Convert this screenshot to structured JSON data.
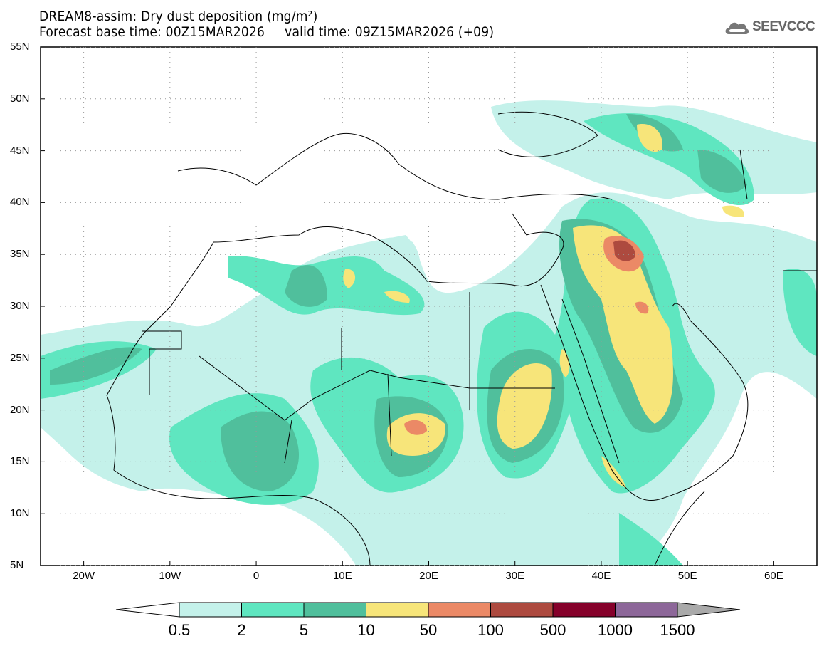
{
  "header": {
    "title": "DREAM8-assim: Dry dust deposition (mg/m²)",
    "subtitle": "Forecast base time: 00Z15MAR2026     valid time: 09Z15MAR2026 (+09)",
    "logo_text": "SEEVCCC",
    "logo_icon": "cloud-icon"
  },
  "map": {
    "lat_labels": [
      "55N",
      "50N",
      "45N",
      "40N",
      "35N",
      "30N",
      "25N",
      "20N",
      "15N",
      "10N",
      "5N"
    ],
    "lon_labels": [
      "20W",
      "10W",
      "0",
      "10E",
      "20E",
      "30E",
      "40E",
      "50E",
      "60E"
    ],
    "extent": {
      "lon": [
        -25,
        65
      ],
      "lat": [
        5,
        55
      ]
    }
  },
  "legend": {
    "labels": [
      "0.5",
      "2",
      "5",
      "10",
      "50",
      "100",
      "500",
      "1000",
      "1500"
    ],
    "colors": [
      "#c4f1ea",
      "#5fe6c0",
      "#50bf9c",
      "#f7e57a",
      "#eb8966",
      "#ad4a3f",
      "#85002a",
      "#8d6799"
    ],
    "under_color": "#ffffff",
    "over_color": "#aaaaaa"
  }
}
